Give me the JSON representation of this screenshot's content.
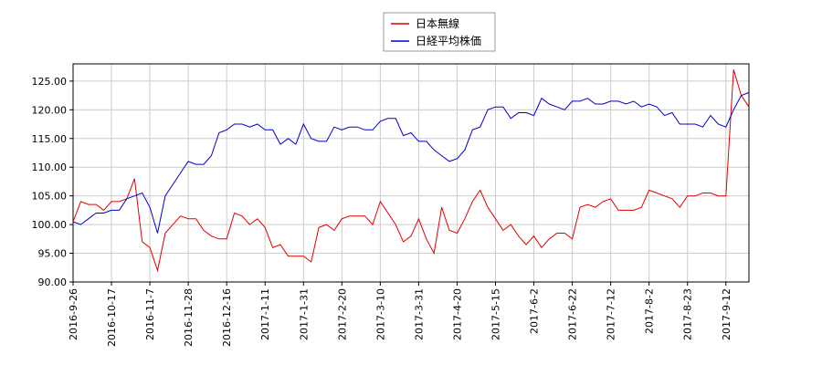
{
  "chart_data": {
    "type": "line",
    "categories": [
      "2016-9-26",
      null,
      null,
      null,
      null,
      "2016-10-17",
      null,
      null,
      null,
      null,
      "2016-11-7",
      null,
      null,
      null,
      null,
      "2016-11-28",
      null,
      null,
      null,
      null,
      "2016-12-16",
      null,
      null,
      null,
      null,
      "2017-1-11",
      null,
      null,
      null,
      null,
      "2017-1-31",
      null,
      null,
      null,
      null,
      "2017-2-20",
      null,
      null,
      null,
      null,
      "2017-3-10",
      null,
      null,
      null,
      null,
      "2017-3-31",
      null,
      null,
      null,
      null,
      "2017-4-20",
      null,
      null,
      null,
      null,
      "2017-5-15",
      null,
      null,
      null,
      null,
      "2017-6-2",
      null,
      null,
      null,
      null,
      "2017-6-22",
      null,
      null,
      null,
      null,
      "2017-7-12",
      null,
      null,
      null,
      null,
      "2017-8-2",
      null,
      null,
      null,
      null,
      "2017-8-23",
      null,
      null,
      null,
      null,
      "2017-9-12",
      null,
      null,
      null
    ],
    "series": [
      {
        "name": "日本無線",
        "color": "#e00000",
        "values": [
          100.5,
          104,
          103.5,
          103.5,
          102.5,
          104,
          104,
          104.5,
          108,
          97,
          96,
          92,
          98.5,
          100,
          101.5,
          101,
          101,
          99,
          98,
          97.5,
          97.5,
          102,
          101.5,
          100,
          101,
          99.5,
          96,
          96.5,
          94.5,
          94.5,
          94.5,
          93.5,
          99.5,
          100,
          99,
          101,
          101.5,
          101.5,
          101.5,
          100,
          104,
          102,
          100,
          97,
          98,
          101,
          97.5,
          95,
          103,
          99,
          98.5,
          101,
          104,
          106,
          103,
          101,
          99,
          100,
          98,
          96.5,
          98,
          96,
          97.5,
          98.5,
          98.5,
          97.5,
          103,
          103.5,
          103,
          104,
          104.5,
          102.5,
          102.5,
          102.5,
          103,
          106,
          105.5,
          105,
          104.5,
          103,
          105,
          105,
          105.5,
          105.5,
          105,
          105,
          127,
          122.5,
          120.5
        ]
      },
      {
        "name": "日経平均株価",
        "color": "#0000cc",
        "values": [
          100.5,
          100,
          101,
          102,
          102,
          102.5,
          102.5,
          104.5,
          105,
          105.5,
          103,
          98.5,
          105,
          107,
          109,
          111,
          110.5,
          110.5,
          112,
          116,
          116.5,
          117.5,
          117.5,
          117,
          117.5,
          116.5,
          116.5,
          114,
          115,
          114,
          117.5,
          115,
          114.5,
          114.5,
          117,
          116.5,
          117,
          117,
          116.5,
          116.5,
          118,
          118.5,
          118.5,
          115.5,
          116,
          114.5,
          114.5,
          113,
          112,
          111,
          111.5,
          113,
          116.5,
          117,
          120,
          120.5,
          120.5,
          118.5,
          119.5,
          119.5,
          119,
          122,
          121,
          120.5,
          120,
          121.5,
          121.5,
          122,
          121,
          121,
          121.5,
          121.5,
          121,
          121.5,
          120.5,
          121,
          120.5,
          119,
          119.5,
          117.5,
          117.5,
          117.5,
          117,
          119,
          117.5,
          117,
          120,
          122.5,
          123
        ]
      }
    ],
    "ylim": [
      90,
      128
    ],
    "yticks": [
      {
        "value": 90,
        "label": "90.00"
      },
      {
        "value": 95,
        "label": "95.00"
      },
      {
        "value": 100,
        "label": "100.00"
      },
      {
        "value": 105,
        "label": "105.00"
      },
      {
        "value": 110,
        "label": "110.00"
      },
      {
        "value": 115,
        "label": "115.00"
      },
      {
        "value": 120,
        "label": "120.00"
      },
      {
        "value": 125,
        "label": "125.00"
      }
    ],
    "grid": true,
    "legend": "top"
  }
}
